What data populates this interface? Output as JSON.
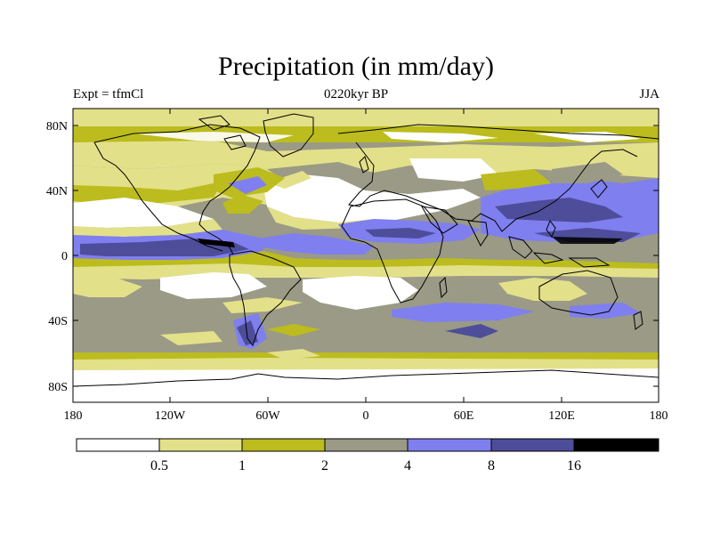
{
  "title": "Precipitation (in mm/day)",
  "experiment": "Expt = tfmCl",
  "period": "0220kyr BP",
  "season": "JJA",
  "lat_ticks": [
    "80N",
    "40N",
    "0",
    "40S",
    "80S"
  ],
  "lon_ticks": [
    "180",
    "120W",
    "60W",
    "0",
    "60E",
    "120E",
    "180"
  ],
  "colorbar": {
    "levels": [
      "0.5",
      "1",
      "2",
      "4",
      "8",
      "16"
    ],
    "colors": [
      "#ffffff",
      "#e3e08a",
      "#bcbc1e",
      "#9a9a86",
      "#7f7ff0",
      "#4d4d9a",
      "#000000"
    ]
  }
}
